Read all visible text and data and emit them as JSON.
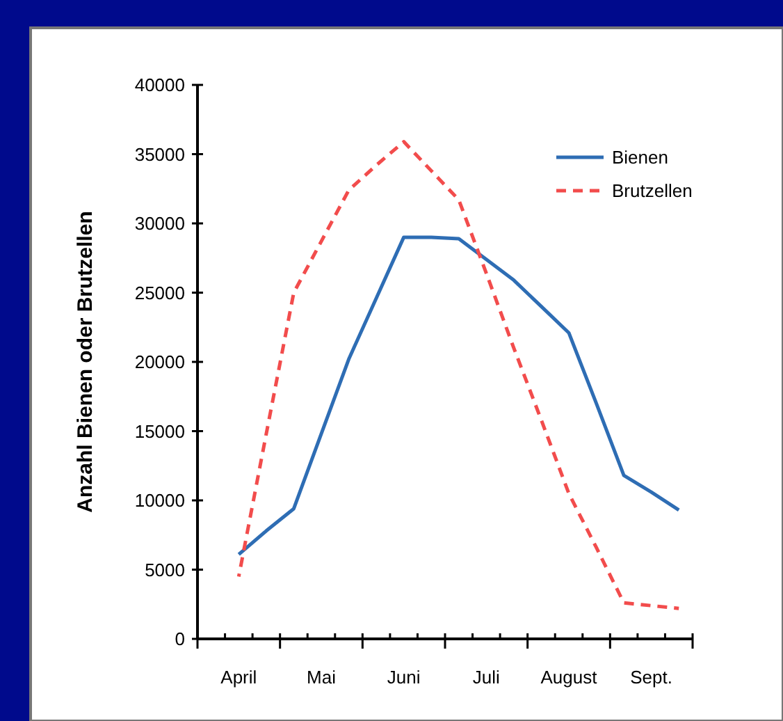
{
  "chart_data": {
    "type": "line",
    "ylabel": "Anzahl Bienen oder Brutzellen",
    "categories": [
      null,
      "April",
      null,
      null,
      "Mai",
      null,
      null,
      "Juni",
      null,
      null,
      "Juli",
      null,
      null,
      "August",
      null,
      null,
      "Sept.",
      null
    ],
    "ylim": [
      0,
      40000
    ],
    "yticks": [
      0,
      5000,
      10000,
      15000,
      20000,
      25000,
      30000,
      35000,
      40000
    ],
    "legend": "top right",
    "grid": false,
    "series": [
      {
        "name": "Bienen",
        "color": "#2e6db4",
        "line_style": "solid",
        "values": [
          null,
          6100,
          7800,
          9400,
          14800,
          20200,
          24600,
          29000,
          29000,
          28900,
          27400,
          25900,
          24000,
          22100,
          17000,
          11800,
          10600,
          9300
        ]
      },
      {
        "name": "Brutzellen",
        "color": "#f24c4c",
        "line_style": "dashed",
        "values": [
          null,
          4500,
          14800,
          25000,
          28700,
          32400,
          34200,
          35900,
          33800,
          31700,
          26400,
          21000,
          15800,
          10500,
          6600,
          2600,
          2400,
          2200
        ]
      }
    ]
  }
}
